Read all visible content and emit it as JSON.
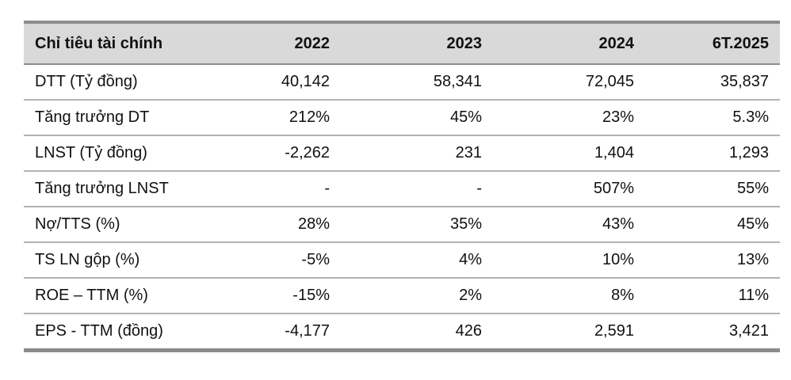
{
  "table": {
    "headers": [
      "Chỉ tiêu tài chính",
      "2022",
      "2023",
      "2024",
      "6T.2025"
    ],
    "rows": [
      {
        "label": "DTT (Tỷ đồng)",
        "values": [
          "40,142",
          "58,341",
          "72,045",
          "35,837"
        ]
      },
      {
        "label": "Tăng trưởng DT",
        "values": [
          "212%",
          "45%",
          "23%",
          "5.3%"
        ]
      },
      {
        "label": "LNST (Tỷ đồng)",
        "values": [
          "-2,262",
          "231",
          "1,404",
          "1,293"
        ]
      },
      {
        "label": "Tăng trưởng LNST",
        "values": [
          "-",
          "-",
          "507%",
          "55%"
        ]
      },
      {
        "label": "Nợ/TTS (%)",
        "values": [
          "28%",
          "35%",
          "43%",
          "45%"
        ]
      },
      {
        "label": "TS LN gộp (%)",
        "values": [
          "-5%",
          "4%",
          "10%",
          "13%"
        ]
      },
      {
        "label": "ROE – TTM (%)",
        "values": [
          "-15%",
          "2%",
          "8%",
          "11%"
        ]
      },
      {
        "label": "EPS - TTM (đồng)",
        "values": [
          "-4,177",
          "426",
          "2,591",
          "3,421"
        ]
      }
    ]
  }
}
